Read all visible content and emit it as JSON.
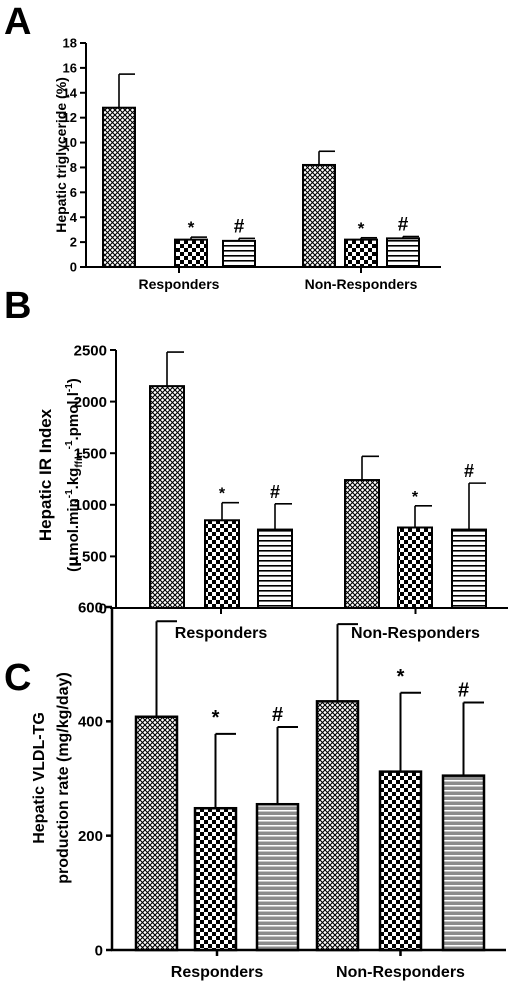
{
  "colors": {
    "ink": "#000000",
    "background": "#ffffff",
    "stripe_fill_panel_c": "#8c8c8c"
  },
  "chart_data": [
    {
      "panel_label": "A",
      "type": "bar",
      "ylabel": "Hepatic triglyceride (%)",
      "ylim": [
        0,
        18
      ],
      "yticks": [
        0,
        2,
        4,
        6,
        8,
        10,
        12,
        14,
        16,
        18
      ],
      "categories": [
        "Responders",
        "Non-Responders"
      ],
      "series": [
        {
          "pattern": "crosshatch",
          "values": [
            12.8,
            8.2
          ],
          "errors": [
            2.7,
            1.1
          ],
          "markers": [
            "",
            ""
          ]
        },
        {
          "pattern": "checker",
          "values": [
            2.2,
            2.2
          ],
          "errors": [
            0.2,
            0.15
          ],
          "markers": [
            "*",
            "*"
          ]
        },
        {
          "pattern": "stripes",
          "values": [
            2.1,
            2.3
          ],
          "errors": [
            0.2,
            0.15
          ],
          "markers": [
            "#",
            "#"
          ]
        }
      ]
    },
    {
      "panel_label": "B",
      "type": "bar",
      "ylabel": "Hepatic IR Index",
      "ylabel_units": "(µmol.min⁻¹.kgffm⁻¹.pmol.l⁻¹)",
      "ylim": [
        0,
        2500
      ],
      "yticks": [
        0,
        500,
        1000,
        1500,
        2000,
        2500
      ],
      "categories": [
        "Responders",
        "Non-Responders"
      ],
      "series": [
        {
          "pattern": "crosshatch",
          "values": [
            2150,
            1240
          ],
          "errors": [
            330,
            230
          ],
          "markers": [
            "",
            ""
          ]
        },
        {
          "pattern": "checker",
          "values": [
            850,
            780
          ],
          "errors": [
            170,
            210
          ],
          "markers": [
            "*",
            "*"
          ]
        },
        {
          "pattern": "stripes",
          "values": [
            760,
            760
          ],
          "errors": [
            250,
            450
          ],
          "markers": [
            "#",
            "#"
          ]
        }
      ]
    },
    {
      "panel_label": "C",
      "type": "bar",
      "ylabel": "Hepatic VLDL-TG",
      "ylabel_line2": "production rate (mg/kg/day)",
      "ylim": [
        0,
        600
      ],
      "yticks": [
        0,
        200,
        400,
        600
      ],
      "categories": [
        "Responders",
        "Non-Responders"
      ],
      "series": [
        {
          "pattern": "crosshatch",
          "values": [
            408,
            435
          ],
          "errors": [
            167,
            135
          ],
          "markers": [
            "",
            ""
          ]
        },
        {
          "pattern": "checker",
          "values": [
            248,
            312
          ],
          "errors": [
            130,
            138
          ],
          "markers": [
            "*",
            "*"
          ]
        },
        {
          "pattern": "stripes-gray",
          "values": [
            255,
            305
          ],
          "errors": [
            135,
            128
          ],
          "markers": [
            "#",
            "#"
          ]
        }
      ]
    }
  ]
}
